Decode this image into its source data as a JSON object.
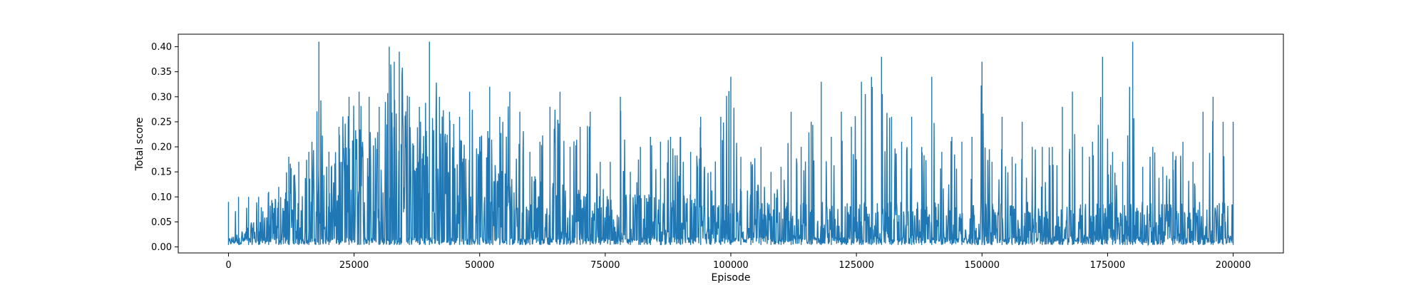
{
  "chart_data": {
    "type": "line",
    "title": "",
    "xlabel": "Episode",
    "ylabel": "Total score",
    "xlim": [
      -10000,
      210000
    ],
    "ylim": [
      -0.012,
      0.425
    ],
    "xticks": [
      0,
      25000,
      50000,
      75000,
      100000,
      125000,
      150000,
      175000,
      200000
    ],
    "xtick_labels": [
      "0",
      "25000",
      "50000",
      "75000",
      "100000",
      "125000",
      "150000",
      "175000",
      "200000"
    ],
    "yticks": [
      0.0,
      0.05,
      0.1,
      0.15,
      0.2,
      0.25,
      0.3,
      0.35,
      0.4
    ],
    "ytick_labels": [
      "0.00",
      "0.05",
      "0.10",
      "0.15",
      "0.20",
      "0.25",
      "0.30",
      "0.35",
      "0.40"
    ],
    "grid": false,
    "legend": "none",
    "series": [
      {
        "color": "#1f77b4",
        "x": [
          0,
          2000,
          4000,
          6000,
          8000,
          10000,
          12000,
          14000,
          16000,
          18000,
          20000,
          22000,
          24000,
          26000,
          28000,
          30000,
          32000,
          33000,
          34000,
          36000,
          38000,
          40000,
          42000,
          44000,
          46000,
          48000,
          50000,
          52000,
          54000,
          56000,
          58000,
          60000,
          62000,
          64000,
          66000,
          68000,
          70000,
          72000,
          74000,
          76000,
          78000,
          80000,
          82000,
          84000,
          86000,
          88000,
          90000,
          92000,
          94000,
          96000,
          98000,
          100000,
          102000,
          104000,
          106000,
          108000,
          110000,
          112000,
          114000,
          116000,
          118000,
          120000,
          122000,
          124000,
          126000,
          128000,
          130000,
          132000,
          134000,
          136000,
          138000,
          140000,
          142000,
          144000,
          146000,
          148000,
          150000,
          152000,
          154000,
          156000,
          158000,
          160000,
          162000,
          164000,
          166000,
          168000,
          170000,
          172000,
          174000,
          176000,
          178000,
          180000,
          182000,
          184000,
          186000,
          188000,
          190000,
          192000,
          194000,
          196000,
          198000,
          200000
        ],
        "peaks": [
          0.09,
          0.1,
          0.1,
          0.1,
          0.11,
          0.12,
          0.18,
          0.17,
          0.19,
          0.41,
          0.19,
          0.24,
          0.3,
          0.31,
          0.3,
          0.28,
          0.4,
          0.37,
          0.39,
          0.3,
          0.28,
          0.41,
          0.3,
          0.27,
          0.26,
          0.31,
          0.22,
          0.32,
          0.26,
          0.31,
          0.27,
          0.19,
          0.21,
          0.28,
          0.31,
          0.2,
          0.24,
          0.27,
          0.17,
          0.17,
          0.3,
          0.15,
          0.2,
          0.22,
          0.21,
          0.22,
          0.22,
          0.19,
          0.26,
          0.15,
          0.26,
          0.34,
          0.18,
          0.17,
          0.2,
          0.15,
          0.16,
          0.27,
          0.2,
          0.25,
          0.33,
          0.22,
          0.27,
          0.24,
          0.33,
          0.34,
          0.38,
          0.26,
          0.21,
          0.26,
          0.2,
          0.34,
          0.19,
          0.22,
          0.21,
          0.22,
          0.37,
          0.17,
          0.26,
          0.18,
          0.25,
          0.2,
          0.2,
          0.2,
          0.28,
          0.31,
          0.2,
          0.21,
          0.38,
          0.19,
          0.17,
          0.41,
          0.16,
          0.2,
          0.16,
          0.19,
          0.21,
          0.17,
          0.27,
          0.3,
          0.25,
          0.25
        ],
        "base": [
          0.01,
          0.02,
          0.03,
          0.04,
          0.06,
          0.07,
          0.08,
          0.09,
          0.1,
          0.11,
          0.12,
          0.13,
          0.14,
          0.15,
          0.16,
          0.17,
          0.18,
          0.19,
          0.19,
          0.19,
          0.18,
          0.18,
          0.17,
          0.16,
          0.15,
          0.14,
          0.13,
          0.12,
          0.12,
          0.11,
          0.1,
          0.1,
          0.09,
          0.09,
          0.09,
          0.08,
          0.08,
          0.08,
          0.07,
          0.07,
          0.07,
          0.07,
          0.07,
          0.07,
          0.07,
          0.07,
          0.07,
          0.07,
          0.06,
          0.06,
          0.06,
          0.06,
          0.06,
          0.06,
          0.06,
          0.06,
          0.06,
          0.06,
          0.06,
          0.06,
          0.06,
          0.06,
          0.06,
          0.06,
          0.06,
          0.06,
          0.06,
          0.06,
          0.06,
          0.06,
          0.06,
          0.06,
          0.06,
          0.06,
          0.06,
          0.06,
          0.06,
          0.06,
          0.06,
          0.06,
          0.06,
          0.06,
          0.06,
          0.06,
          0.06,
          0.06,
          0.06,
          0.06,
          0.06,
          0.06,
          0.06,
          0.06,
          0.06,
          0.06,
          0.06,
          0.06,
          0.06,
          0.06,
          0.06,
          0.06,
          0.06,
          0.06
        ]
      }
    ]
  }
}
